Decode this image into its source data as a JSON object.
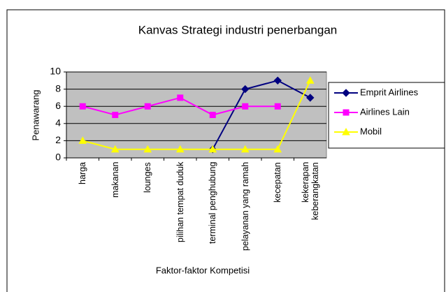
{
  "chart_data": {
    "type": "line",
    "title": "Kanvas Strategi industri penerbangan",
    "y_label": "Penawarang",
    "x_label": "Faktor-faktor Kompetisi",
    "categories": [
      "harga",
      "makanan",
      "lounges",
      "pilihan tempat duduk",
      "terminal penghubung",
      "pelayanan yang ramah",
      "kecepatan",
      "kekerapan keberangkatan"
    ],
    "series": [
      {
        "name": "Emprit Airlines",
        "color": "#000080",
        "marker": "diamond",
        "values": [
          null,
          null,
          null,
          null,
          1,
          8,
          9,
          7
        ]
      },
      {
        "name": "Airlines Lain",
        "color": "#ff00ff",
        "marker": "square",
        "values": [
          6,
          5,
          6,
          7,
          5,
          6,
          6,
          null
        ]
      },
      {
        "name": "Mobil",
        "color": "#ffff00",
        "marker": "triangle",
        "values": [
          2,
          1,
          1,
          1,
          1,
          1,
          1,
          9
        ]
      }
    ],
    "ylim": [
      0,
      10
    ],
    "yticks": [
      0,
      2,
      4,
      6,
      8,
      10
    ],
    "grid": true,
    "legend": "right"
  }
}
